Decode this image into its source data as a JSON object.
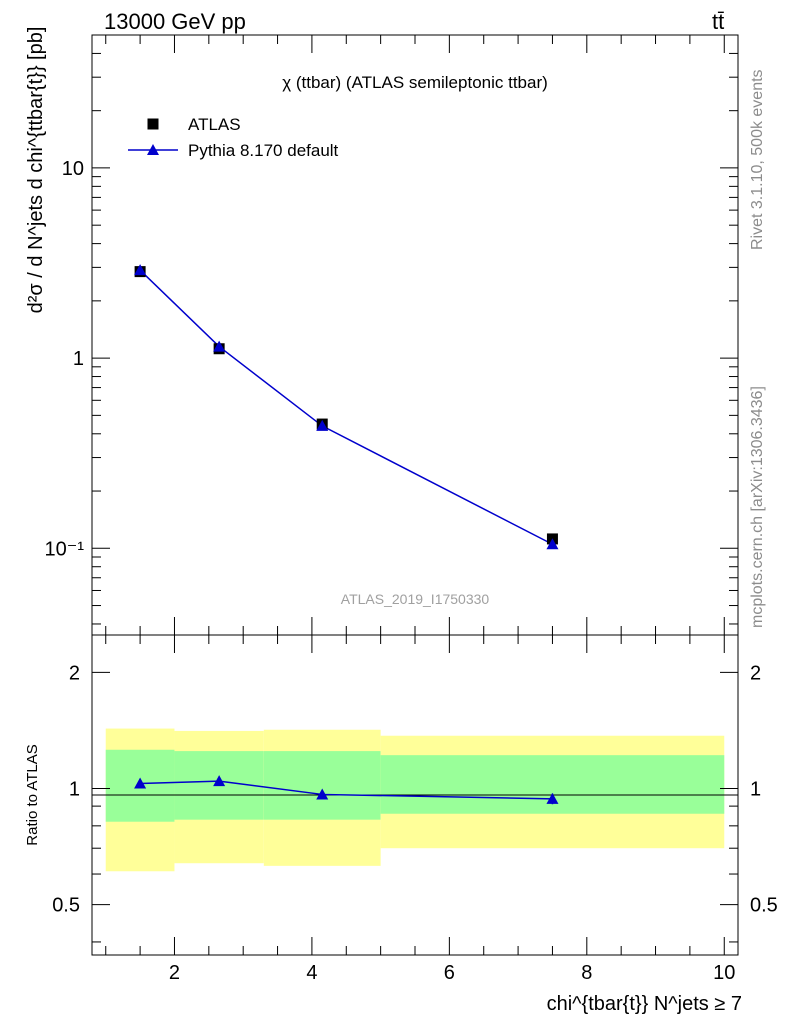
{
  "header": {
    "left": "13000 GeV pp",
    "right": "tt̄"
  },
  "side_text": {
    "top": "Rivet 3.1.10,  500k events",
    "bottom": "mcplots.cern.ch [arXiv:1306.3436]"
  },
  "chart_data": [
    {
      "type": "scatter",
      "panel": "main",
      "title": "χ (ttbar) (ATLAS semileptonic ttbar)",
      "watermark": "ATLAS_2019_I1750330",
      "ylabel": "d²σ / d N^jets d chi^{ttbar{t}} [pb]",
      "yscale": "log",
      "ylim": [
        0.035,
        50
      ],
      "xlim": [
        0.8,
        10.2
      ],
      "y_ticks": [
        "10⁻¹",
        "1",
        "10"
      ],
      "legend_position": "top-left",
      "series": [
        {
          "name": "ATLAS",
          "marker": "square",
          "color": "#000000",
          "x": [
            1.5,
            2.65,
            4.15,
            7.5
          ],
          "y": [
            2.85,
            1.12,
            0.45,
            0.112
          ]
        },
        {
          "name": "Pythia 8.170 default",
          "marker": "triangle",
          "line": true,
          "color": "#0000cc",
          "x": [
            1.5,
            2.65,
            4.15,
            7.5
          ],
          "y": [
            2.9,
            1.15,
            0.44,
            0.105
          ]
        }
      ]
    },
    {
      "type": "scatter",
      "panel": "ratio",
      "ylabel": "Ratio to ATLAS",
      "xlabel": "chi^{tbar{t}} N^jets ≥ 7",
      "xlim": [
        0.8,
        10.2
      ],
      "ylim": [
        0.37,
        2.5
      ],
      "yscale": "log",
      "x_ticks": [
        "2",
        "4",
        "6",
        "8",
        "10"
      ],
      "y_ticks": [
        "0.5",
        "1",
        "2"
      ],
      "bands": [
        {
          "x_lo": 1.0,
          "x_hi": 2.0,
          "inner": [
            0.82,
            1.26
          ],
          "outer": [
            0.61,
            1.43
          ]
        },
        {
          "x_lo": 2.0,
          "x_hi": 3.3,
          "inner": [
            0.83,
            1.25
          ],
          "outer": [
            0.64,
            1.41
          ]
        },
        {
          "x_lo": 3.3,
          "x_hi": 5.0,
          "inner": [
            0.83,
            1.25
          ],
          "outer": [
            0.63,
            1.42
          ]
        },
        {
          "x_lo": 5.0,
          "x_hi": 10.0,
          "inner": [
            0.86,
            1.22
          ],
          "outer": [
            0.7,
            1.37
          ]
        }
      ],
      "series": [
        {
          "name": "Pythia 8.170 default",
          "color": "#0000cc",
          "x": [
            1.5,
            2.65,
            4.15,
            7.5
          ],
          "y": [
            1.03,
            1.045,
            0.965,
            0.94
          ],
          "err": [
            0.01,
            0.02,
            0.025,
            0.03
          ]
        }
      ],
      "colors": {
        "inner_band": "#99ff99",
        "outer_band": "#ffff99",
        "reference_line": "#000000"
      }
    }
  ]
}
